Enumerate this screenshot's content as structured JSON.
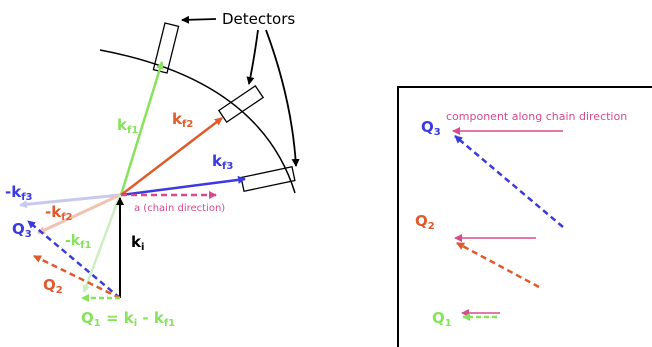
{
  "colors": {
    "green": "#86e35a",
    "orange": "#e05a2b",
    "blue": "#3a3ae0",
    "magenta": "#d84a8e",
    "black": "#000000",
    "light_blue": "#c9c9ee",
    "light_orange": "#f2c2b0",
    "light_green": "#cdeec0"
  },
  "left": {
    "detectors_label": "Detectors",
    "vectors": {
      "kf1": {
        "main": "k",
        "sub": "f1"
      },
      "kf2": {
        "main": "k",
        "sub": "f2"
      },
      "kf3": {
        "main": "k",
        "sub": "f3"
      },
      "ki": {
        "main": "k",
        "sub": "i"
      },
      "neg_kf3": {
        "main": "-k",
        "sub": "f3"
      },
      "neg_kf2": {
        "main": "-k",
        "sub": "f2"
      },
      "neg_kf1": {
        "main": "-k",
        "sub": "f1"
      },
      "q3": {
        "main": "Q",
        "sub": "3"
      },
      "q2": {
        "main": "Q",
        "sub": "2"
      }
    },
    "chain_label": "a (chain direction)",
    "equation": {
      "q": "Q",
      "q_sub": "1",
      "eq": " = k",
      "ki_sub": "i",
      "minus": " - k",
      "kf_sub": "f1"
    }
  },
  "right": {
    "component_label": "component along chain direction",
    "q3": {
      "main": "Q",
      "sub": "3"
    },
    "q2": {
      "main": "Q",
      "sub": "2"
    },
    "q1": {
      "main": "Q",
      "sub": "1"
    }
  }
}
